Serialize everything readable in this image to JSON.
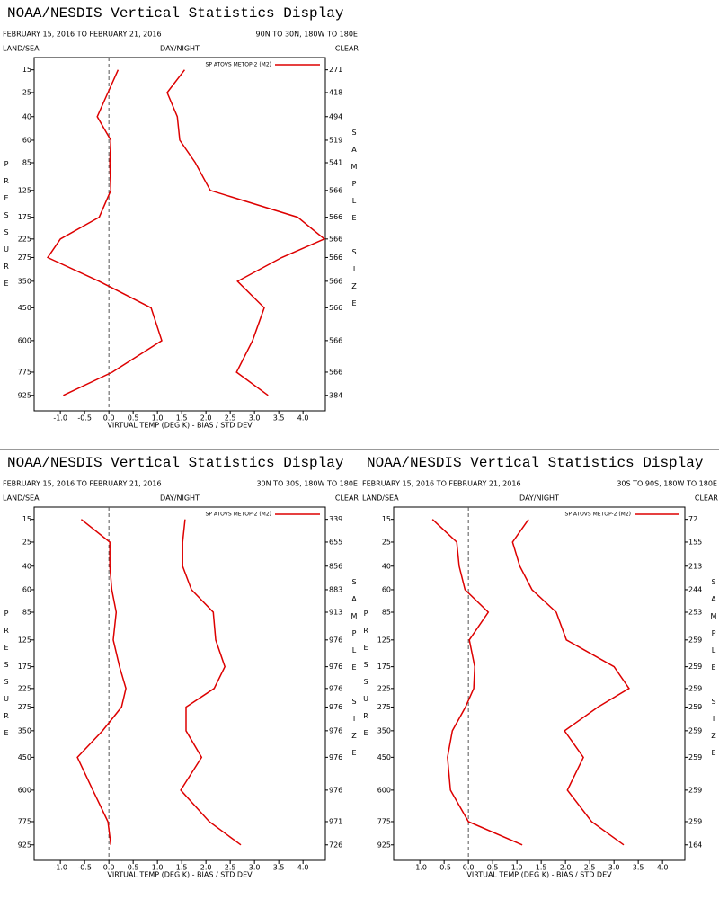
{
  "chart_data": [
    {
      "type": "line",
      "title": "NOAA/NESDIS Vertical Statistics Display",
      "date_range": "FEBRUARY 15, 2016 TO FEBRUARY 21, 2016",
      "region": "90N TO 30N, 180W TO 180E",
      "top_left_label": "LAND/SEA",
      "top_center_label": "DAY/NIGHT",
      "top_right_label": "CLEAR",
      "ylabel": "PRESSURE",
      "y2label": "SAMPLE SIZE",
      "xlabel": "VIRTUAL TEMP (DEG K) - BIAS / STD DEV",
      "yscale": "pressure",
      "ylim": [
        11,
        1036
      ],
      "levels": [
        15,
        25,
        40,
        60,
        85,
        125,
        175,
        225,
        275,
        350,
        450,
        600,
        775,
        925
      ],
      "sample_size": [
        271,
        418,
        494,
        519,
        541,
        566,
        566,
        566,
        566,
        566,
        566,
        566,
        566,
        384
      ],
      "xlim": [
        -1.54,
        4.46
      ],
      "xticks": [
        {
          "value": -1,
          "label": "-1.0"
        },
        {
          "value": -0.5,
          "label": "-0.5"
        },
        {
          "value": 0,
          "label": "0.0"
        },
        {
          "value": 0.5,
          "label": "0.5"
        },
        {
          "value": 1,
          "label": "1.0"
        },
        {
          "value": 1.5,
          "label": "1.5"
        },
        {
          "value": 2,
          "label": "2.0"
        },
        {
          "value": 2.5,
          "label": "2.5"
        },
        {
          "value": 3,
          "label": "3.0"
        },
        {
          "value": 3.5,
          "label": "3.5"
        },
        {
          "value": 4,
          "label": "4.0"
        }
      ],
      "series": [
        {
          "name": "SP ATOVS METOP-2 (M2)",
          "color": "#dd0000",
          "bias": [
            0.19,
            -0.02,
            -0.24,
            0.04,
            0.02,
            0.04,
            -0.2,
            -1.0,
            -1.26,
            -0.2,
            0.87,
            1.09,
            0.07,
            -0.94
          ],
          "std_dev": [
            1.56,
            1.2,
            1.41,
            1.46,
            1.78,
            2.09,
            3.89,
            4.44,
            3.56,
            2.65,
            3.2,
            2.96,
            2.63,
            3.28
          ]
        }
      ]
    },
    {
      "type": "line",
      "title": "NOAA/NESDIS Vertical Statistics Display",
      "date_range": "FEBRUARY 15, 2016 TO FEBRUARY 21, 2016",
      "region": "30N TO 30S, 180W TO 180E",
      "top_left_label": "LAND/SEA",
      "top_center_label": "DAY/NIGHT",
      "top_right_label": "CLEAR",
      "ylabel": "PRESSURE",
      "y2label": "SAMPLE SIZE",
      "xlabel": "VIRTUAL TEMP (DEG K) - BIAS / STD DEV",
      "yscale": "pressure",
      "ylim": [
        11,
        1036
      ],
      "levels": [
        15,
        25,
        40,
        60,
        85,
        125,
        175,
        225,
        275,
        350,
        450,
        600,
        775,
        925
      ],
      "sample_size": [
        339,
        655,
        856,
        883,
        913,
        976,
        976,
        976,
        976,
        976,
        976,
        976,
        971,
        726
      ],
      "xlim": [
        -1.54,
        4.46
      ],
      "xticks": [
        {
          "value": -1,
          "label": "-1.0"
        },
        {
          "value": -0.5,
          "label": "-0.5"
        },
        {
          "value": 0,
          "label": "0.0"
        },
        {
          "value": 0.5,
          "label": "0.5"
        },
        {
          "value": 1,
          "label": "1.0"
        },
        {
          "value": 1.5,
          "label": "1.5"
        },
        {
          "value": 2,
          "label": "2.0"
        },
        {
          "value": 2.5,
          "label": "2.5"
        },
        {
          "value": 3,
          "label": "3.0"
        },
        {
          "value": 3.5,
          "label": "3.5"
        },
        {
          "value": 4,
          "label": "4.0"
        }
      ],
      "series": [
        {
          "name": "SP ATOVS METOP-2 (M2)",
          "color": "#dd0000",
          "bias": [
            -0.57,
            0.02,
            0.02,
            0.06,
            0.15,
            0.09,
            0.22,
            0.35,
            0.26,
            -0.13,
            -0.65,
            -0.33,
            -0.02,
            0.04
          ],
          "std_dev": [
            1.57,
            1.52,
            1.52,
            1.7,
            2.15,
            2.2,
            2.39,
            2.17,
            1.59,
            1.59,
            1.91,
            1.48,
            2.07,
            2.72
          ]
        }
      ]
    },
    {
      "type": "line",
      "title": "NOAA/NESDIS Vertical Statistics Display",
      "date_range": "FEBRUARY 15, 2016 TO FEBRUARY 21, 2016",
      "region": "30S TO 90S, 180W TO 180E",
      "top_left_label": "LAND/SEA",
      "top_center_label": "DAY/NIGHT",
      "top_right_label": "CLEAR",
      "ylabel": "PRESSURE",
      "y2label": "SAMPLE SIZE",
      "xlabel": "VIRTUAL TEMP (DEG K) - BIAS / STD DEV",
      "yscale": "pressure",
      "ylim": [
        11,
        1036
      ],
      "levels": [
        15,
        25,
        40,
        60,
        85,
        125,
        175,
        225,
        275,
        350,
        450,
        600,
        775,
        925
      ],
      "sample_size": [
        72,
        155,
        213,
        244,
        253,
        259,
        259,
        259,
        259,
        259,
        259,
        259,
        259,
        164
      ],
      "xlim": [
        -1.54,
        4.46
      ],
      "xticks": [
        {
          "value": -1,
          "label": "-1.0"
        },
        {
          "value": -0.5,
          "label": "-0.5"
        },
        {
          "value": 0,
          "label": "0.0"
        },
        {
          "value": 0.5,
          "label": "0.5"
        },
        {
          "value": 1,
          "label": "1.0"
        },
        {
          "value": 1.5,
          "label": "1.5"
        },
        {
          "value": 2,
          "label": "2.0"
        },
        {
          "value": 2.5,
          "label": "2.5"
        },
        {
          "value": 3,
          "label": "3.0"
        },
        {
          "value": 3.5,
          "label": "3.5"
        },
        {
          "value": 4,
          "label": "4.0"
        }
      ],
      "series": [
        {
          "name": "SP ATOVS METOP-2 (M2)",
          "color": "#dd0000",
          "bias": [
            -0.74,
            -0.24,
            -0.19,
            -0.07,
            0.41,
            0.02,
            0.13,
            0.11,
            -0.06,
            -0.33,
            -0.43,
            -0.37,
            0,
            1.11
          ],
          "std_dev": [
            1.24,
            0.91,
            1.06,
            1.31,
            1.81,
            2.02,
            3.0,
            3.31,
            2.67,
            1.98,
            2.37,
            2.04,
            2.54,
            3.2
          ]
        }
      ]
    }
  ]
}
